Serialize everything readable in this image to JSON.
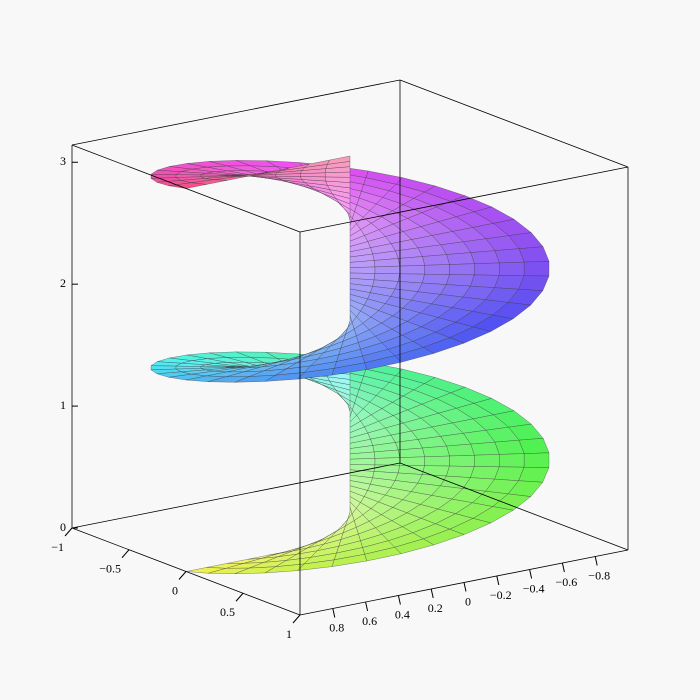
{
  "chart_data": {
    "type": "surface",
    "xlim": [
      -1,
      1
    ],
    "xticks": [
      {
        "value": -1,
        "label": "−1"
      },
      {
        "value": -0.5,
        "label": "−0.5"
      },
      0,
      0.5,
      1
    ],
    "ylim": [
      -1,
      1
    ],
    "yticks": [
      0.8,
      0.6,
      0.4,
      0.2,
      0,
      {
        "value": -0.2,
        "label": "−0.2"
      },
      {
        "value": -0.4,
        "label": "−0.4"
      },
      {
        "value": -0.6,
        "label": "−0.6"
      },
      {
        "value": -0.8,
        "label": "−0.8"
      }
    ],
    "zlim": [
      0,
      3.14159
    ],
    "zticks": [
      0,
      1,
      2,
      3
    ]
  }
}
